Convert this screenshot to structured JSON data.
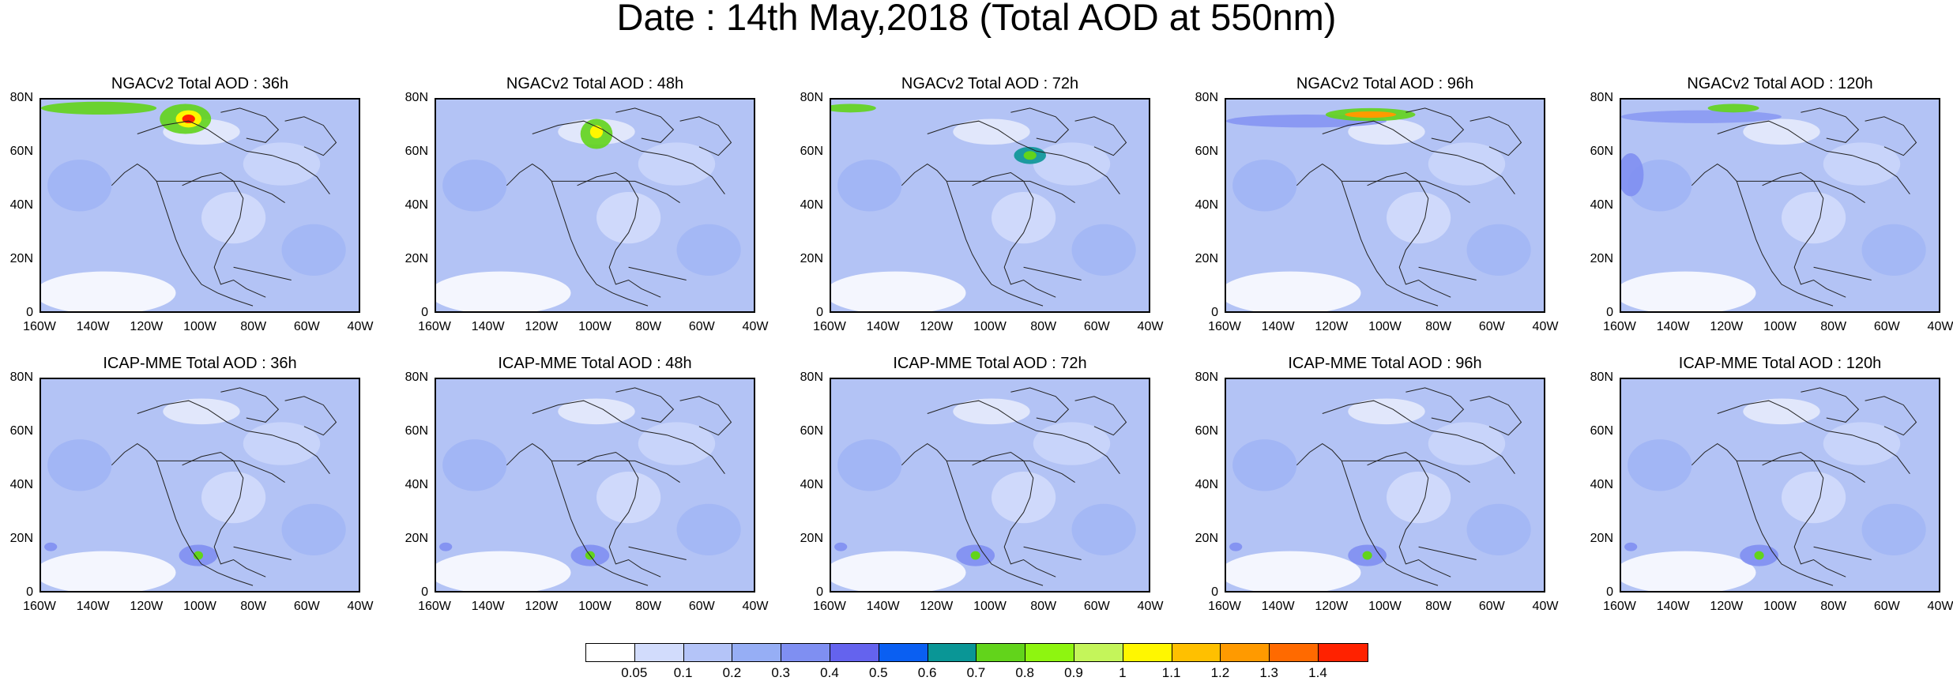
{
  "title": "Date : 14th May,2018 (Total AOD at 550nm)",
  "lat_ticks": [
    "80N",
    "60N",
    "40N",
    "20N",
    "0"
  ],
  "lon_ticks": [
    "160W",
    "140W",
    "120W",
    "100W",
    "80W",
    "60W",
    "40W"
  ],
  "panels": [
    {
      "label": "NGACv2 Total AOD : 36h",
      "row": 0,
      "col": 0
    },
    {
      "label": "NGACv2 Total AOD : 48h",
      "row": 0,
      "col": 1
    },
    {
      "label": "NGACv2 Total AOD : 72h",
      "row": 0,
      "col": 2
    },
    {
      "label": "NGACv2 Total AOD : 96h",
      "row": 0,
      "col": 3
    },
    {
      "label": "NGACv2 Total AOD : 120h",
      "row": 0,
      "col": 4
    },
    {
      "label": "ICAP-MME Total AOD : 36h",
      "row": 1,
      "col": 0
    },
    {
      "label": "ICAP-MME Total AOD : 48h",
      "row": 1,
      "col": 1
    },
    {
      "label": "ICAP-MME Total AOD : 72h",
      "row": 1,
      "col": 2
    },
    {
      "label": "ICAP-MME Total AOD : 96h",
      "row": 1,
      "col": 3
    },
    {
      "label": "ICAP-MME Total AOD : 120h",
      "row": 1,
      "col": 4
    }
  ],
  "colorbar": {
    "labels": [
      "0.05",
      "0.1",
      "0.2",
      "0.3",
      "0.4",
      "0.5",
      "0.6",
      "0.7",
      "0.8",
      "0.9",
      "1",
      "1.1",
      "1.2",
      "1.3",
      "1.4"
    ],
    "colors": [
      "#ffffff",
      "#d2dcfc",
      "#b4c4f8",
      "#96aef5",
      "#7f8ff2",
      "#6463ee",
      "#0a5ff2",
      "#0a9696",
      "#62d41b",
      "#8ef510",
      "#c4f55a",
      "#fff700",
      "#ffc000",
      "#ff9a00",
      "#ff6a00",
      "#ff2200"
    ]
  },
  "ocean_color": "#b3c3f5",
  "land_color": "#bfcdf7"
}
